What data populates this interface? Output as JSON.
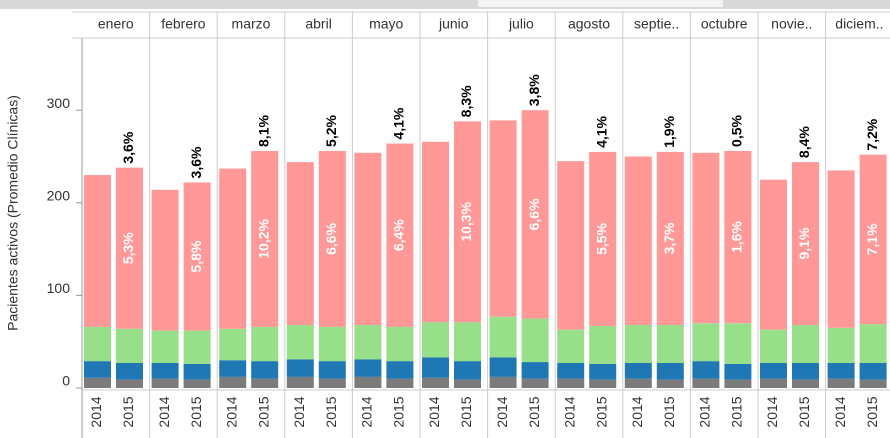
{
  "chart_data": {
    "type": "stacked_bar",
    "y_axis_label": "Pacientes activos (Promedio Clínicas)",
    "categories": [
      "enero",
      "febrero",
      "marzo",
      "abril",
      "mayo",
      "junio",
      "julio",
      "agosto",
      "septie..",
      "octubre",
      "novie..",
      "diciem.."
    ],
    "subcategories": [
      "2014",
      "2015"
    ],
    "series": [
      {
        "color": "#7b7b7b",
        "values": [
          [
            11,
            9
          ],
          [
            10,
            9
          ],
          [
            12,
            10
          ],
          [
            12,
            10
          ],
          [
            12,
            10
          ],
          [
            11,
            9
          ],
          [
            12,
            10
          ],
          [
            10,
            9
          ],
          [
            10,
            9
          ],
          [
            10,
            9
          ],
          [
            10,
            9
          ],
          [
            10,
            9
          ]
        ]
      },
      {
        "color": "#1f77b4",
        "values": [
          [
            18,
            18
          ],
          [
            17,
            17
          ],
          [
            18,
            19
          ],
          [
            19,
            19
          ],
          [
            19,
            19
          ],
          [
            22,
            20
          ],
          [
            21,
            18
          ],
          [
            17,
            17
          ],
          [
            17,
            18
          ],
          [
            19,
            17
          ],
          [
            17,
            18
          ],
          [
            17,
            18
          ]
        ]
      },
      {
        "color": "#98df8a",
        "values": [
          [
            37,
            37
          ],
          [
            35,
            36
          ],
          [
            34,
            37
          ],
          [
            37,
            37
          ],
          [
            37,
            37
          ],
          [
            38,
            42
          ],
          [
            44,
            47
          ],
          [
            36,
            41
          ],
          [
            41,
            41
          ],
          [
            41,
            44
          ],
          [
            36,
            41
          ],
          [
            38,
            42
          ]
        ]
      },
      {
        "color": "#ff9896",
        "values": [
          [
            164,
            174
          ],
          [
            152,
            160
          ],
          [
            173,
            190
          ],
          [
            176,
            190
          ],
          [
            186,
            198
          ],
          [
            195,
            217
          ],
          [
            212,
            225
          ],
          [
            182,
            188
          ],
          [
            182,
            187
          ],
          [
            184,
            186
          ],
          [
            162,
            176
          ],
          [
            170,
            183
          ]
        ]
      }
    ],
    "total_growth_labels": [
      "3,6%",
      "3,6%",
      "8,1%",
      "5,2%",
      "4,1%",
      "8,3%",
      "3,8%",
      "4,1%",
      "1,9%",
      "0,5%",
      "8,4%",
      "7,2%"
    ],
    "segment_growth_labels": [
      "5,3%",
      "5,8%",
      "10,2%",
      "6,6%",
      "6,4%",
      "10,3%",
      "6,6%",
      "5,5%",
      "3,7%",
      "1,6%",
      "9,1%",
      "7,1%"
    ],
    "ylim": [
      0,
      378
    ],
    "yticks": [
      0,
      100,
      200,
      300
    ]
  }
}
